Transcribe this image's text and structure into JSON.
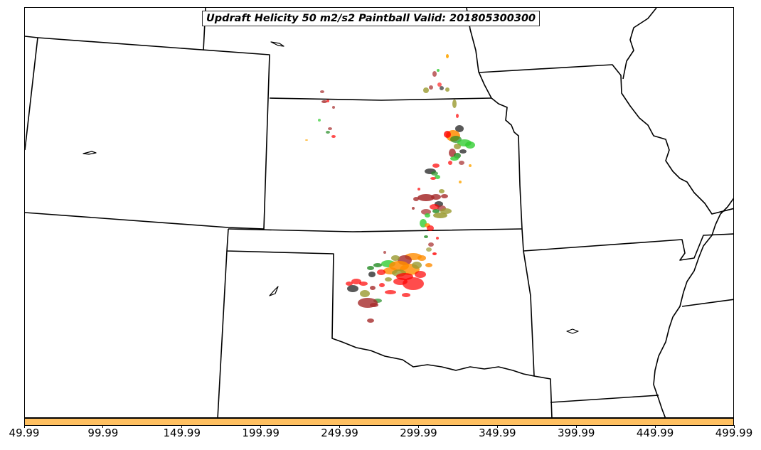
{
  "title": "Updraft Helicity 50 m2/s2 Paintball Valid: 201805300300",
  "colorbar": {
    "color": "#ffc061",
    "ticks": [
      "49.99",
      "99.99",
      "149.99",
      "199.99",
      "249.99",
      "299.99",
      "349.99",
      "399.99",
      "449.99",
      "499.99"
    ],
    "min": 49.99,
    "max": 499.99
  },
  "colors": {
    "border": "#000000",
    "paintball": [
      "#ff0000",
      "#a52a2a",
      "#228b22",
      "#32cd32",
      "#ff8c00",
      "#9a9a30",
      "#2f2f2f",
      "#ffa500"
    ]
  },
  "chart_data": {
    "type": "map",
    "title": "Updraft Helicity 50 m2/s2 Paintball Valid: 201805300300",
    "colorbar_range": [
      49.99,
      499.99
    ],
    "colorbar_ticks": [
      49.99,
      99.99,
      149.99,
      199.99,
      249.99,
      299.99,
      349.99,
      399.99,
      449.99,
      499.99
    ]
  }
}
